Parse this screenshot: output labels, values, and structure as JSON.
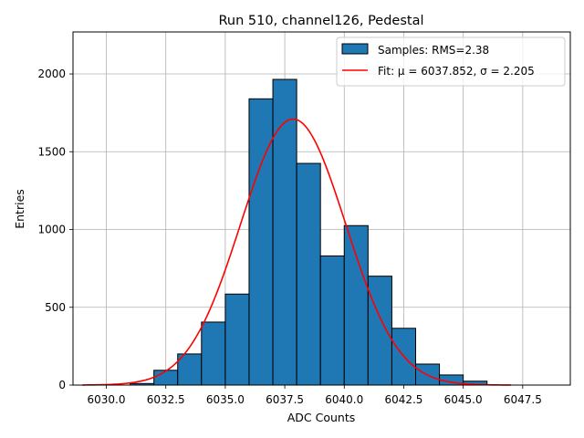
{
  "chart_data": {
    "type": "bar",
    "title": "Run 510, channel126, Pedestal",
    "xlabel": "ADC Counts",
    "ylabel": "Entries",
    "xlim": [
      6028.6,
      6049.5
    ],
    "ylim": [
      0,
      2270
    ],
    "xticks": [
      6030.0,
      6032.5,
      6035.0,
      6037.5,
      6040.0,
      6042.5,
      6045.0,
      6047.5
    ],
    "xtick_labels": [
      "6030.0",
      "6032.5",
      "6035.0",
      "6037.5",
      "6040.0",
      "6042.5",
      "6045.0",
      "6047.5"
    ],
    "yticks": [
      0,
      500,
      1000,
      1500,
      2000
    ],
    "ytick_labels": [
      "0",
      "500",
      "1000",
      "1500",
      "2000"
    ],
    "grid": true,
    "legend_position": "top-right",
    "bar_color": "#1f77b4",
    "fit_color": "#ff0000",
    "histogram": {
      "name": "Samples: RMS=2.38",
      "bin_edges": [
        6031.0,
        6032.0,
        6033.0,
        6034.0,
        6035.0,
        6036.0,
        6037.0,
        6038.0,
        6039.0,
        6040.0,
        6041.0,
        6042.0,
        6043.0,
        6044.0,
        6045.0,
        6046.0
      ],
      "values": [
        10,
        95,
        200,
        405,
        585,
        1840,
        1965,
        1425,
        830,
        1025,
        700,
        365,
        135,
        65,
        25
      ]
    },
    "fit": {
      "name": "Fit: μ = 6037.852, σ = 2.205",
      "mu": 6037.852,
      "sigma": 2.205,
      "amplitude": 1710,
      "x_range": [
        6029.0,
        6047.0
      ]
    }
  }
}
